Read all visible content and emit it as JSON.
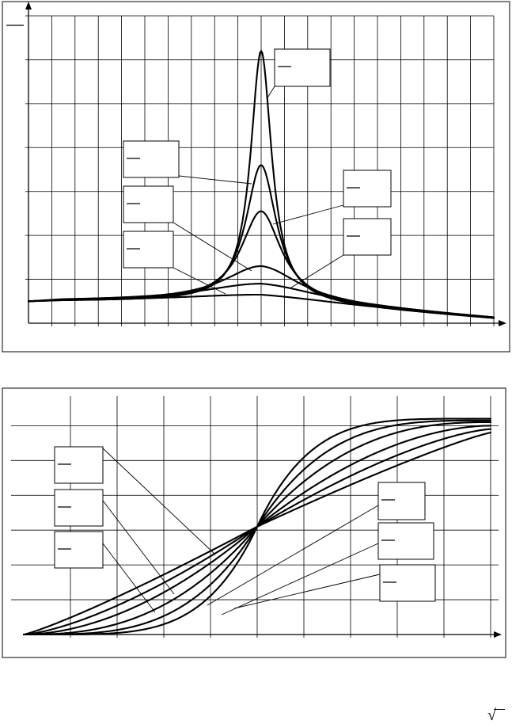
{
  "charts": {
    "top": {
      "type": "line",
      "x_range": [
        0,
        20
      ],
      "y_range": [
        0,
        7
      ],
      "x_grid_count": 20,
      "y_grid_count": 7,
      "grid": true,
      "x_peak": 10,
      "curves": [
        {
          "base": 0.5,
          "tail": 0.1,
          "peak": 6.2,
          "w": 0.55
        },
        {
          "base": 0.5,
          "tail": 0.1,
          "peak": 3.6,
          "w": 0.8
        },
        {
          "base": 0.5,
          "tail": 0.1,
          "peak": 2.55,
          "w": 1.05
        },
        {
          "base": 0.5,
          "tail": 0.1,
          "peak": 1.3,
          "w": 2.0
        },
        {
          "base": 0.5,
          "tail": 0.1,
          "peak": 0.9,
          "w": 3.2
        },
        {
          "base": 0.5,
          "tail": 0.1,
          "peak": 0.65,
          "w": 4.5
        }
      ]
    },
    "bottom": {
      "type": "line",
      "x_range": [
        0,
        10
      ],
      "y_range": [
        0,
        6
      ],
      "x_grid_count": 10,
      "y_grid_count": 6,
      "grid": true,
      "crossing": [
        5,
        3.1
      ],
      "curves": [
        {
          "k": 4.0,
          "max": 6.2
        },
        {
          "k": 3.0,
          "max": 6.15
        },
        {
          "k": 2.2,
          "max": 6.1
        },
        {
          "k": 1.6,
          "max": 6.0
        },
        {
          "k": 1.25,
          "max": 5.9
        },
        {
          "k": 1.0,
          "max": 5.8
        }
      ]
    }
  },
  "footer": {
    "radical": "√"
  }
}
